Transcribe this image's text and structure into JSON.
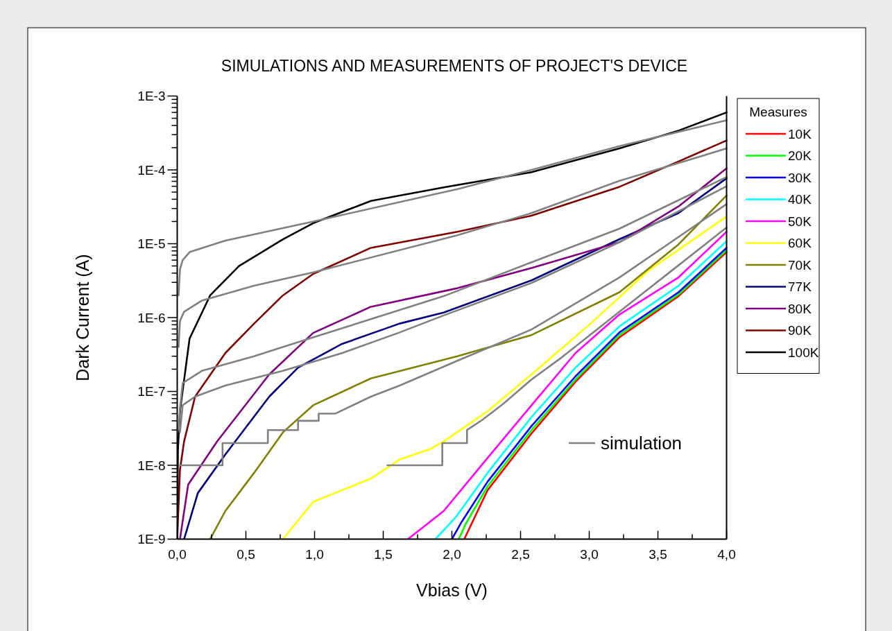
{
  "chart_data": {
    "type": "line",
    "title": "SIMULATIONS AND MEASUREMENTS OF PROJECT'S DEVICE",
    "xlabel": "Vbias (V)",
    "ylabel": "Dark Current (A)",
    "legend_title": "Measures",
    "legend": "right",
    "log": "y",
    "xlim": [
      0,
      4.0
    ],
    "ylim": [
      1e-09,
      0.001
    ],
    "xticks": [
      {
        "value": 0,
        "label": "0,0"
      },
      {
        "value": 0.25,
        "label": null
      },
      {
        "value": 0.5,
        "label": "0,5"
      },
      {
        "value": 0.75,
        "label": null
      },
      {
        "value": 1,
        "label": "1,0"
      },
      {
        "value": 1.25,
        "label": null
      },
      {
        "value": 1.5,
        "label": "1,5"
      },
      {
        "value": 1.75,
        "label": null
      },
      {
        "value": 2,
        "label": "2,0"
      },
      {
        "value": 2.25,
        "label": null
      },
      {
        "value": 2.5,
        "label": "2,5"
      },
      {
        "value": 2.75,
        "label": null
      },
      {
        "value": 3,
        "label": "3,0"
      },
      {
        "value": 3.25,
        "label": null
      },
      {
        "value": 3.5,
        "label": "3,5"
      },
      {
        "value": 3.75,
        "label": null
      },
      {
        "value": 4,
        "label": "4,0"
      }
    ],
    "yticks": [
      {
        "value": 1e-09,
        "label": "1E-9"
      },
      {
        "value": 2e-09,
        "label": null
      },
      {
        "value": 3e-09,
        "label": null
      },
      {
        "value": 4e-09,
        "label": null
      },
      {
        "value": 5e-09,
        "label": null
      },
      {
        "value": 6e-09,
        "label": null
      },
      {
        "value": 7e-09,
        "label": null
      },
      {
        "value": 8e-09,
        "label": null
      },
      {
        "value": 9e-09,
        "label": null
      },
      {
        "value": 1e-08,
        "label": "1E-8"
      },
      {
        "value": 2e-08,
        "label": null
      },
      {
        "value": 3e-08,
        "label": null
      },
      {
        "value": 4e-08,
        "label": null
      },
      {
        "value": 5e-08,
        "label": null
      },
      {
        "value": 6e-08,
        "label": null
      },
      {
        "value": 7e-08,
        "label": null
      },
      {
        "value": 8e-08,
        "label": null
      },
      {
        "value": 9e-08,
        "label": null
      },
      {
        "value": 1e-07,
        "label": "1E-7"
      },
      {
        "value": 2e-07,
        "label": null
      },
      {
        "value": 3e-07,
        "label": null
      },
      {
        "value": 4e-07,
        "label": null
      },
      {
        "value": 5e-07,
        "label": null
      },
      {
        "value": 6e-07,
        "label": null
      },
      {
        "value": 7e-07,
        "label": null
      },
      {
        "value": 8e-07,
        "label": null
      },
      {
        "value": 9e-07,
        "label": null
      },
      {
        "value": 1e-06,
        "label": "1E-6"
      },
      {
        "value": 2e-06,
        "label": null
      },
      {
        "value": 3e-06,
        "label": null
      },
      {
        "value": 4e-06,
        "label": null
      },
      {
        "value": 5e-06,
        "label": null
      },
      {
        "value": 6e-06,
        "label": null
      },
      {
        "value": 7e-06,
        "label": null
      },
      {
        "value": 8e-06,
        "label": null
      },
      {
        "value": 9e-06,
        "label": null
      },
      {
        "value": 1e-05,
        "label": "1E-5"
      },
      {
        "value": 2e-05,
        "label": null
      },
      {
        "value": 3e-05,
        "label": null
      },
      {
        "value": 4e-05,
        "label": null
      },
      {
        "value": 5e-05,
        "label": null
      },
      {
        "value": 6e-05,
        "label": null
      },
      {
        "value": 7e-05,
        "label": null
      },
      {
        "value": 8e-05,
        "label": null
      },
      {
        "value": 9e-05,
        "label": null
      },
      {
        "value": 0.0001,
        "label": "1E-4"
      },
      {
        "value": 0.0002,
        "label": null
      },
      {
        "value": 0.0003,
        "label": null
      },
      {
        "value": 0.0004,
        "label": null
      },
      {
        "value": 0.0005,
        "label": null
      },
      {
        "value": 0.0006,
        "label": null
      },
      {
        "value": 0.0007,
        "label": null
      },
      {
        "value": 0.0008,
        "label": null
      },
      {
        "value": 0.0009,
        "label": null
      },
      {
        "value": 0.001,
        "label": "1E-3"
      }
    ],
    "series": [
      {
        "name": "10K",
        "color": "#ff0000",
        "x": [
          2.09,
          2.26,
          2.58,
          2.9,
          3.22,
          3.65,
          4.0
        ],
        "values": [
          1e-09,
          4.6e-09,
          2.7e-08,
          1.35e-07,
          5.4e-07,
          1.95e-06,
          7.7e-06
        ]
      },
      {
        "name": "20K",
        "color": "#00ff00",
        "x": [
          2.05,
          2.1,
          2.26,
          2.58,
          2.9,
          3.22,
          3.65,
          4.0
        ],
        "values": [
          1e-09,
          1.6e-09,
          5.2e-09,
          3e-08,
          1.45e-07,
          5.8e-07,
          2.05e-06,
          8.2e-06
        ]
      },
      {
        "name": "30K",
        "color": "#0000ff",
        "x": [
          2.0,
          2.07,
          2.26,
          2.58,
          2.9,
          3.22,
          3.65,
          4.0
        ],
        "values": [
          1e-09,
          1.7e-09,
          6e-09,
          3.4e-08,
          1.6e-07,
          6.3e-07,
          2.2e-06,
          8.8e-06
        ]
      },
      {
        "name": "40K",
        "color": "#00ffff",
        "x": [
          1.88,
          2.03,
          2.26,
          2.58,
          2.9,
          3.22,
          3.65,
          4.0
        ],
        "values": [
          1e-09,
          2e-09,
          7.9e-09,
          4.5e-08,
          2.1e-07,
          7.6e-07,
          2.7e-06,
          1.08e-05
        ]
      },
      {
        "name": "50K",
        "color": "#ff00ff",
        "x": [
          1.68,
          1.94,
          2.26,
          2.58,
          2.9,
          3.22,
          3.65,
          4.0
        ],
        "values": [
          1e-09,
          2.4e-09,
          1.26e-08,
          6.5e-08,
          3.3e-07,
          1.1e-06,
          3.5e-06,
          1.45e-05
        ]
      },
      {
        "name": "60K",
        "color": "#ffff00",
        "x": [
          0.77,
          0.99,
          1.2,
          1.41,
          1.62,
          1.84,
          1.94,
          2.26,
          2.58,
          3.01,
          3.43,
          4.0
        ],
        "values": [
          1e-09,
          3.2e-09,
          4.6e-09,
          6.6e-09,
          1.2e-08,
          1.65e-08,
          2.1e-08,
          5.4e-08,
          1.7e-07,
          8.3e-07,
          4.3e-06,
          2.34e-05
        ]
      },
      {
        "name": "70K",
        "color": "#808000",
        "x": [
          0.24,
          0.35,
          0.56,
          0.77,
          0.99,
          1.41,
          2.04,
          2.58,
          3.22,
          3.65,
          4.0
        ],
        "values": [
          1e-09,
          2.4e-09,
          7.9e-09,
          2.8e-08,
          6.5e-08,
          1.5e-07,
          3e-07,
          5.8e-07,
          2.2e-06,
          9.8e-06,
          4.5e-05
        ]
      },
      {
        "name": "77K",
        "color": "#000080",
        "x": [
          0.05,
          0.15,
          0.35,
          0.67,
          0.88,
          1.2,
          1.62,
          1.94,
          2.58,
          3.22,
          3.65,
          4.0
        ],
        "values": [
          1e-09,
          4.2e-09,
          1.4e-08,
          8.5e-08,
          2.1e-07,
          4.4e-07,
          8.3e-07,
          1.17e-06,
          3.2e-06,
          1.15e-05,
          2.6e-05,
          7.7e-05
        ]
      },
      {
        "name": "80K",
        "color": "#800080",
        "x": [
          0.02,
          0.08,
          0.29,
          0.67,
          0.99,
          1.41,
          2.04,
          2.58,
          3.22,
          3.65,
          4.0
        ],
        "values": [
          1e-09,
          5.5e-09,
          2.1e-08,
          1.7e-07,
          6.2e-07,
          1.4e-06,
          2.5e-06,
          4.7e-06,
          1.05e-05,
          3.2e-05,
          0.000105
        ]
      },
      {
        "name": "90K",
        "color": "#800000",
        "x": [
          0,
          0.02,
          0.05,
          0.13,
          0.35,
          0.56,
          0.77,
          0.99,
          1.41,
          2.04,
          2.58,
          3.22,
          3.65,
          4.0
        ],
        "values": [
          1e-09,
          8.7e-09,
          2.1e-08,
          8.5e-08,
          3.3e-07,
          8.3e-07,
          2e-06,
          3.9e-06,
          8.8e-06,
          1.45e-05,
          2.4e-05,
          5.9e-05,
          0.00013,
          0.00025
        ]
      },
      {
        "name": "100K",
        "color": "#000000",
        "x": [
          0,
          0.005,
          0.02,
          0.09,
          0.24,
          0.45,
          0.77,
          0.99,
          1.41,
          1.94,
          2.58,
          3.22,
          3.65,
          4.0
        ],
        "values": [
          1e-09,
          1.6e-08,
          5.4e-08,
          5.2e-07,
          2e-06,
          5e-06,
          1.15e-05,
          1.9e-05,
          3.8e-05,
          5.8e-05,
          9.3e-05,
          0.000195,
          0.00034,
          0.0006
        ]
      },
      {
        "name": "simulation",
        "color": "#808080",
        "x": [
          0.01,
          0.02,
          0.04,
          0.09,
          0.35,
          0.99,
          2.04,
          2.58,
          3.22,
          4.0
        ],
        "values": [
          2e-06,
          4.5e-06,
          6e-06,
          7.7e-06,
          1.1e-05,
          2e-05,
          5.5e-05,
          0.0001,
          0.00021,
          0.00047
        ]
      },
      {
        "color": "#808080",
        "x": [
          0.01,
          0.02,
          0.05,
          0.18,
          0.56,
          0.99,
          2.04,
          2.58,
          3.22,
          4.0
        ],
        "values": [
          4e-07,
          9e-07,
          1.2e-06,
          1.7e-06,
          2.7e-06,
          4.1e-06,
          1.3e-05,
          2.6e-05,
          7.1e-05,
          0.000195
        ]
      },
      {
        "color": "#808080",
        "x": [
          0.01,
          0.02,
          0.04,
          0.18,
          0.56,
          0.99,
          1.94,
          2.58,
          3.22,
          4.0
        ],
        "values": [
          3e-08,
          5.9e-08,
          1.3e-07,
          1.9e-07,
          3e-07,
          5.4e-07,
          1.95e-06,
          5.6e-06,
          1.6e-05,
          8e-05
        ]
      },
      {
        "color": "#808080",
        "x": [
          0.02,
          0.04,
          0.13,
          0.35,
          0.77,
          1.2,
          1.62,
          1.94,
          2.58,
          3.22,
          4.0
        ],
        "values": [
          2.8e-08,
          6.5e-08,
          8.5e-08,
          1.2e-07,
          1.9e-07,
          3.3e-07,
          6.3e-07,
          1.07e-06,
          2.95e-06,
          1.05e-05,
          6e-05
        ]
      },
      {
        "color": "#808080",
        "x": [
          0.02,
          0.33,
          0.33,
          0.66,
          0.66,
          0.88,
          0.88,
          1.03,
          1.03,
          1.15,
          1.41,
          1.62,
          2.04,
          2.58,
          3.22,
          4.0
        ],
        "values": [
          1e-08,
          1e-08,
          2e-08,
          2e-08,
          3e-08,
          3e-08,
          4e-08,
          4e-08,
          5e-08,
          5e-08,
          8.5e-08,
          1.2e-07,
          2.6e-07,
          6.9e-07,
          3.5e-06,
          3.44e-05
        ]
      },
      {
        "color": "#808080",
        "x": [
          1.53,
          1.93,
          1.93,
          2.11,
          2.11,
          2.22,
          2.37,
          2.58,
          2.79,
          3.22,
          3.65,
          4.0
        ],
        "values": [
          1e-08,
          1e-08,
          2e-08,
          2e-08,
          3e-08,
          4.1e-08,
          6.7e-08,
          1.45e-07,
          2.8e-07,
          1.2e-06,
          5.1e-06,
          1.66e-05
        ]
      }
    ]
  }
}
